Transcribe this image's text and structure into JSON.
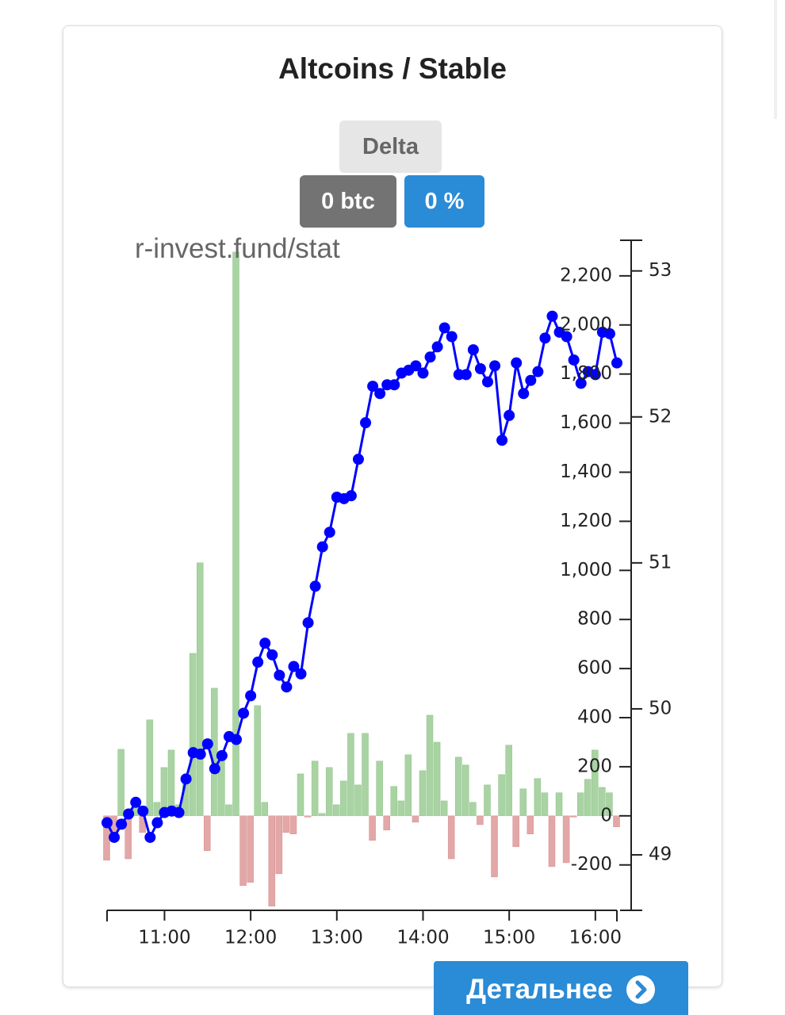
{
  "ui": {
    "delta": "Delta",
    "btc": "0 btc",
    "percent": "0 %",
    "watermark": "r-invest.fund/stat",
    "details": "Детальнее"
  },
  "chart_data": {
    "type": "combo",
    "title": "Altcoins / Stable",
    "x": [
      620,
      625,
      630,
      635,
      640,
      645,
      650,
      655,
      660,
      665,
      670,
      675,
      680,
      685,
      690,
      695,
      700,
      705,
      710,
      715,
      720,
      725,
      730,
      735,
      740,
      745,
      750,
      755,
      760,
      765,
      770,
      775,
      780,
      785,
      790,
      795,
      800,
      805,
      810,
      815,
      820,
      825,
      830,
      835,
      840,
      845,
      850,
      855,
      860,
      865,
      870,
      875,
      880,
      885,
      890,
      895,
      900,
      905,
      910,
      915,
      920,
      925,
      930,
      935,
      940,
      945,
      950,
      955,
      960,
      965,
      970,
      975
    ],
    "xlim": [
      620,
      975
    ],
    "xticks": [
      {
        "value": 660,
        "label": "11:00"
      },
      {
        "value": 720,
        "label": "12:00"
      },
      {
        "value": 780,
        "label": "13:00"
      },
      {
        "value": 840,
        "label": "14:00"
      },
      {
        "value": 900,
        "label": "15:00"
      },
      {
        "value": 960,
        "label": "16:00"
      }
    ],
    "ylim": [
      -385,
      2345
    ],
    "yticks": [
      -200,
      0,
      200,
      400,
      600,
      800,
      {
        "value": 1000,
        "label": "1,000"
      },
      {
        "value": 1200,
        "label": "1,200"
      },
      {
        "value": 1400,
        "label": "1,400"
      },
      {
        "value": 1600,
        "label": "1,600"
      },
      {
        "value": 1800,
        "label": "1,800"
      },
      {
        "value": 2000,
        "label": "2,000"
      },
      {
        "value": 2200,
        "label": "2,200"
      }
    ],
    "y2lim": [
      48.62,
      53.21
    ],
    "y2ticks": [
      49,
      50,
      51,
      52,
      53
    ],
    "series": [
      {
        "type": "bar",
        "color": "#a9d3a3",
        "negative_color": "#e3a7a7",
        "values": [
          -181,
          -100,
          271,
          -175,
          40,
          -68,
          391,
          55,
          197,
          268,
          45,
          142,
          662,
          1031,
          -142,
          520,
          255,
          45,
          2297,
          -284,
          -271,
          449,
          55,
          -368,
          -236,
          -68,
          -74,
          171,
          -5,
          223,
          10,
          197,
          45,
          142,
          336,
          126,
          336,
          -100,
          223,
          -58,
          120,
          61,
          249,
          -26,
          184,
          410,
          300,
          61,
          -175,
          239,
          207,
          55,
          -36,
          126,
          -249,
          168,
          288,
          -126,
          110,
          -74,
          152,
          94,
          -207,
          94,
          -191,
          -5,
          94,
          149,
          268,
          116,
          94,
          -45
        ]
      },
      {
        "type": "line",
        "axis": "y2",
        "color": "#0000ff",
        "values": [
          49.22,
          49.12,
          49.21,
          49.28,
          49.36,
          49.3,
          49.12,
          49.22,
          49.29,
          49.3,
          49.29,
          49.52,
          49.7,
          49.69,
          49.76,
          49.59,
          49.68,
          49.81,
          49.79,
          49.97,
          50.09,
          50.32,
          50.45,
          50.37,
          50.23,
          50.15,
          50.29,
          50.24,
          50.59,
          50.84,
          51.11,
          51.21,
          51.45,
          51.44,
          51.46,
          51.71,
          51.96,
          52.21,
          52.16,
          52.22,
          52.22,
          52.3,
          52.32,
          52.35,
          52.3,
          52.41,
          52.48,
          52.61,
          52.55,
          52.29,
          52.29,
          52.46,
          52.33,
          52.24,
          52.35,
          51.84,
          52.01,
          52.37,
          52.16,
          52.25,
          52.31,
          52.54,
          52.69,
          52.58,
          52.55,
          52.39,
          52.23,
          52.31,
          52.29,
          52.58,
          52.57,
          52.37
        ]
      }
    ]
  }
}
